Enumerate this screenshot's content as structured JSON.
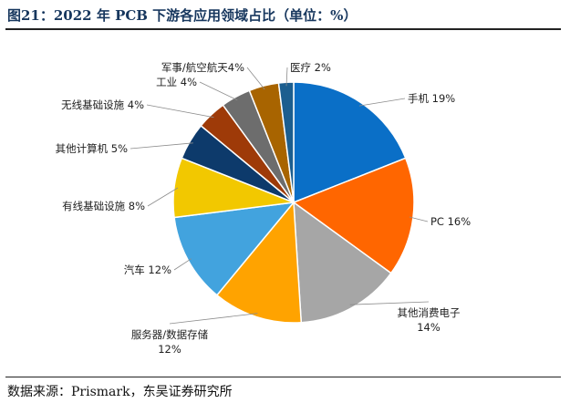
{
  "title": "图21：2022 年 PCB 下游各应用领域占比（单位：%）",
  "source": "数据来源：Prismark，东吴证券研究所",
  "chart_data": {
    "type": "pie",
    "unit": "%",
    "slices": [
      {
        "name": "手机",
        "value": 19,
        "label": "手机 19%",
        "color": "#0a6fc7"
      },
      {
        "name": "PC",
        "value": 16,
        "label": "PC 16%",
        "color": "#ff6600"
      },
      {
        "name": "其他消费电子",
        "value": 14,
        "label": "其他消费电子|14%",
        "color": "#a6a6a6"
      },
      {
        "name": "服务器/数据存储",
        "value": 12,
        "label": "服务器/数据存储|12%",
        "color": "#ffa300"
      },
      {
        "name": "汽车",
        "value": 12,
        "label": "汽车 12%",
        "color": "#42a3de"
      },
      {
        "name": "有线基础设施",
        "value": 8,
        "label": "有线基础设施 8%",
        "color": "#f2c800"
      },
      {
        "name": "其他计算机",
        "value": 5,
        "label": "其他计算机 5%",
        "color": "#0d3a6b"
      },
      {
        "name": "无线基础设施",
        "value": 4,
        "label": "无线基础设施 4%",
        "color": "#9e3a08"
      },
      {
        "name": "工业",
        "value": 4,
        "label": "工业 4%",
        "color": "#6d6d6d"
      },
      {
        "name": "军事/航空航天",
        "value": 4,
        "label": "军事/航空航天4%",
        "color": "#a86400"
      },
      {
        "name": "医疗",
        "value": 2,
        "label": "医疗 2%",
        "color": "#1c5e8f"
      }
    ]
  }
}
